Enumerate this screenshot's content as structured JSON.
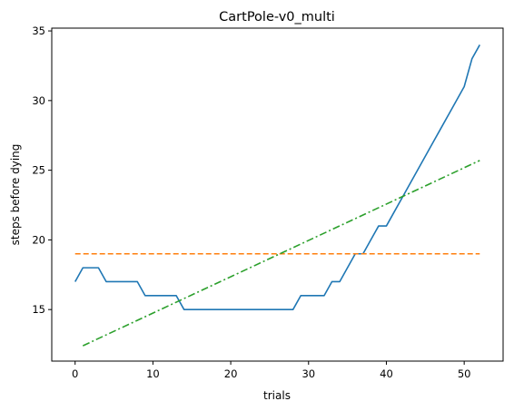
{
  "chart_data": {
    "type": "line",
    "title": "CartPole-v0_multi",
    "xlabel": "trials",
    "ylabel": "steps before dying",
    "xlim": [
      -3,
      55
    ],
    "ylim": [
      11.3,
      35.2
    ],
    "xticks": [
      0,
      10,
      20,
      30,
      40,
      50
    ],
    "yticks": [
      15,
      20,
      25,
      30,
      35
    ],
    "grid": false,
    "series": [
      {
        "color": "#1f77b4",
        "style": "solid",
        "x": [
          0,
          1,
          2,
          3,
          4,
          5,
          6,
          7,
          8,
          9,
          10,
          11,
          12,
          13,
          14,
          15,
          16,
          17,
          18,
          19,
          20,
          21,
          22,
          23,
          24,
          25,
          26,
          27,
          28,
          29,
          30,
          31,
          32,
          33,
          34,
          35,
          36,
          37,
          38,
          39,
          40,
          41,
          42,
          43,
          44,
          45,
          46,
          47,
          48,
          49,
          50,
          51,
          52
        ],
        "y": [
          17,
          18,
          18,
          18,
          17,
          17,
          17,
          17,
          17,
          16,
          16,
          16,
          16,
          16,
          15,
          15,
          15,
          15,
          15,
          15,
          15,
          15,
          15,
          15,
          15,
          15,
          15,
          15,
          15,
          16,
          16,
          16,
          16,
          17,
          17,
          18,
          19,
          19,
          20,
          21,
          21,
          22,
          23,
          24,
          25,
          26,
          27,
          28,
          29,
          30,
          31,
          33,
          34
        ]
      },
      {
        "color": "#ff7f0e",
        "style": "dashed",
        "x": [
          0,
          52
        ],
        "y": [
          19,
          19
        ]
      },
      {
        "color": "#2ca02c",
        "style": "dashdot",
        "x": [
          1,
          52
        ],
        "y": [
          12.4,
          25.7
        ]
      }
    ]
  }
}
